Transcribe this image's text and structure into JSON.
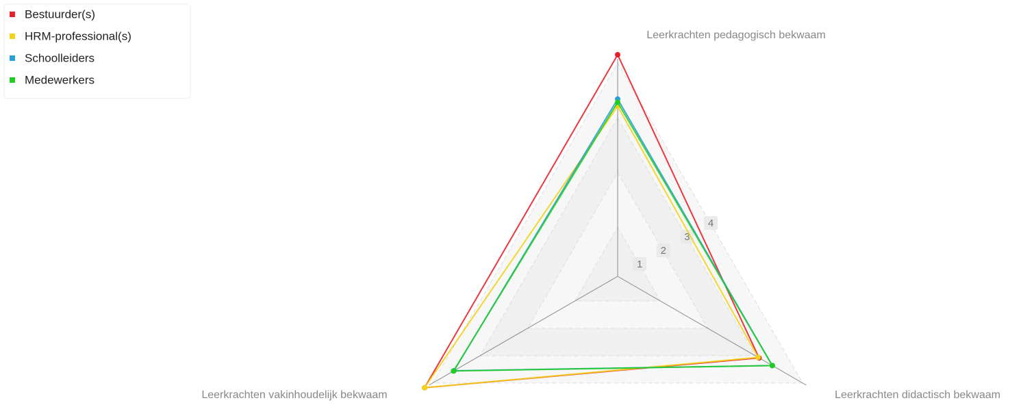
{
  "chart_data": {
    "type": "radar",
    "categories": [
      "Leerkrachten pedagogisch bekwaam",
      "Leerkrachten didactisch bekwaam",
      "Leerkrachten vakinhoudelijk bekwaam"
    ],
    "series": [
      {
        "name": "Bestuurder(s)",
        "color": "#e8202a",
        "values": [
          4.15,
          3.08,
          4.17
        ]
      },
      {
        "name": "HRM-professional(s)",
        "color": "#f2d21a",
        "values": [
          3.21,
          3.06,
          4.17
        ]
      },
      {
        "name": "Schoolleiders",
        "color": "#2d9fd8",
        "values": [
          3.34,
          3.36,
          3.55
        ]
      },
      {
        "name": "Medewerkers",
        "color": "#22cc22",
        "values": [
          3.28,
          3.36,
          3.56
        ]
      }
    ],
    "ylim": [
      0.1,
      4
    ],
    "yticks": [
      1,
      2,
      3,
      4
    ],
    "grid": true,
    "legend": "top-left"
  }
}
